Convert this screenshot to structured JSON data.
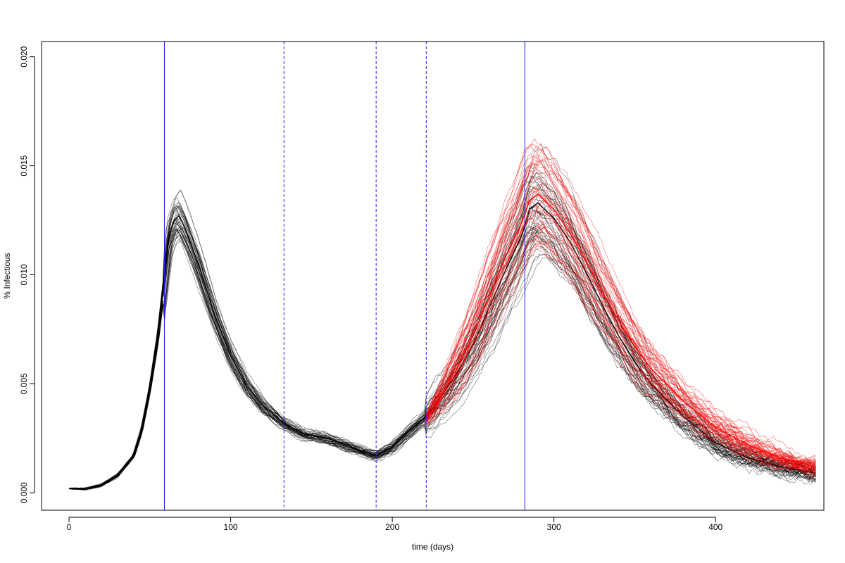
{
  "chart_data": {
    "type": "line",
    "title": "",
    "xlabel": "time (days)",
    "ylabel": "% Infectious",
    "xlim": [
      -17,
      467
    ],
    "ylim": [
      -0.0008,
      0.0207
    ],
    "x_ticks": [
      0,
      100,
      200,
      300,
      400
    ],
    "x_tick_labels": [
      "0",
      "100",
      "200",
      "300",
      "400"
    ],
    "y_ticks": [
      0.0,
      0.005,
      0.01,
      0.015,
      0.02
    ],
    "y_tick_labels": [
      "0.000",
      "0.005",
      "0.010",
      "0.015",
      "0.020"
    ],
    "grid": false,
    "legend": "none",
    "vertical_lines": [
      {
        "x": 59,
        "style": "solid",
        "color": "#1a1aff"
      },
      {
        "x": 133,
        "style": "dashed",
        "color": "#1a1aff"
      },
      {
        "x": 190,
        "style": "dashed",
        "color": "#1a1aff"
      },
      {
        "x": 221,
        "style": "dashed",
        "color": "#1a1aff"
      },
      {
        "x": 282,
        "style": "solid",
        "color": "#1a1aff"
      }
    ],
    "series": [
      {
        "color": "#000000",
        "style": "black simulation ensemble (many stochastic trajectories, median shown)",
        "x": [
          0,
          10,
          20,
          30,
          40,
          45,
          50,
          55,
          59,
          62,
          65,
          68,
          72,
          80,
          90,
          100,
          110,
          120,
          133,
          145,
          160,
          175,
          190,
          200,
          210,
          221,
          230,
          240,
          250,
          260,
          270,
          280,
          285,
          290,
          300,
          310,
          320,
          330,
          340,
          350,
          360,
          380,
          400,
          420,
          440,
          462
        ],
        "values": [
          0.0002,
          0.00017,
          0.00035,
          0.0008,
          0.0017,
          0.0029,
          0.0048,
          0.0072,
          0.0098,
          0.0118,
          0.0125,
          0.0127,
          0.0121,
          0.0105,
          0.0082,
          0.0063,
          0.0049,
          0.004,
          0.0032,
          0.0027,
          0.0025,
          0.0021,
          0.0017,
          0.0021,
          0.0028,
          0.0035,
          0.0044,
          0.0055,
          0.0068,
          0.0085,
          0.0102,
          0.0118,
          0.013,
          0.0133,
          0.0126,
          0.0115,
          0.0101,
          0.0086,
          0.0072,
          0.006,
          0.005,
          0.0035,
          0.0023,
          0.0016,
          0.0012,
          0.0009
        ]
      },
      {
        "color": "#ff0000",
        "style": "red simulation ensemble from day 221 (median shown)",
        "x": [
          221,
          230,
          240,
          250,
          260,
          270,
          280,
          285,
          290,
          300,
          310,
          320,
          330,
          340,
          350,
          360,
          380,
          400,
          420,
          440,
          462
        ],
        "values": [
          0.0033,
          0.0044,
          0.0057,
          0.0072,
          0.009,
          0.0108,
          0.0124,
          0.0134,
          0.0137,
          0.013,
          0.0119,
          0.0106,
          0.0092,
          0.0079,
          0.0067,
          0.0057,
          0.0042,
          0.003,
          0.0022,
          0.0016,
          0.0012
        ]
      }
    ]
  }
}
